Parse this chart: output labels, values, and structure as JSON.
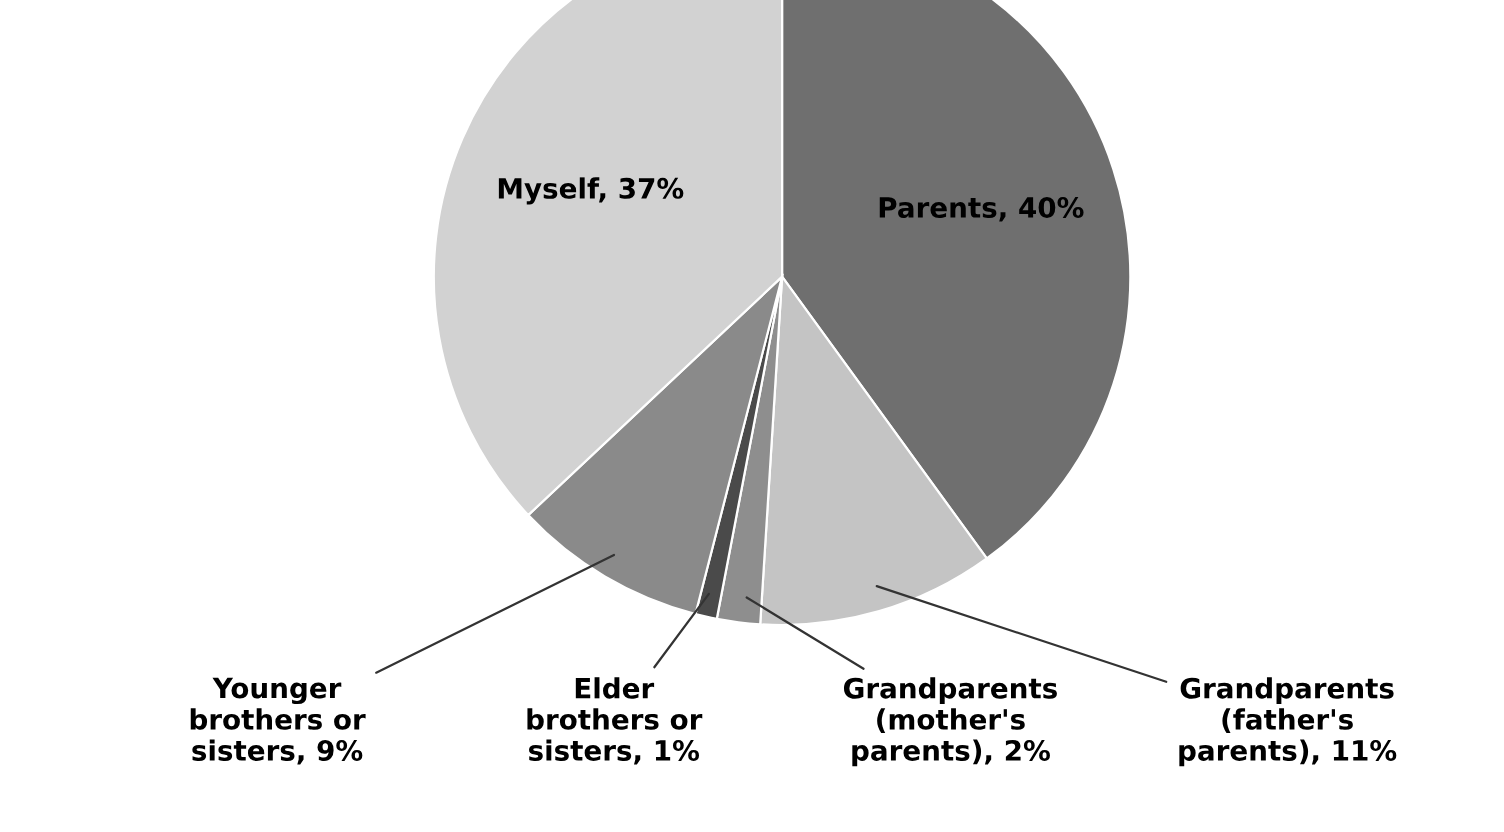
{
  "chart_data": {
    "type": "pie",
    "categories": [
      "Parents, 40%",
      "Grandparents\n(father's\nparents), 11%",
      "Grandparents\n(mother's\nparents), 2%",
      "Elder\nbrothers or\nsisters, 1%",
      "Younger\nbrothers or\nsisters, 9%",
      "Myself, 37%"
    ],
    "values": [
      40,
      11,
      2,
      1,
      9,
      37
    ],
    "colors": [
      "#6f6f6f",
      "#c4c4c4",
      "#8e8e8e",
      "#4a4a4a",
      "#8a8a8a",
      "#d2d2d2"
    ],
    "legend": false
  }
}
